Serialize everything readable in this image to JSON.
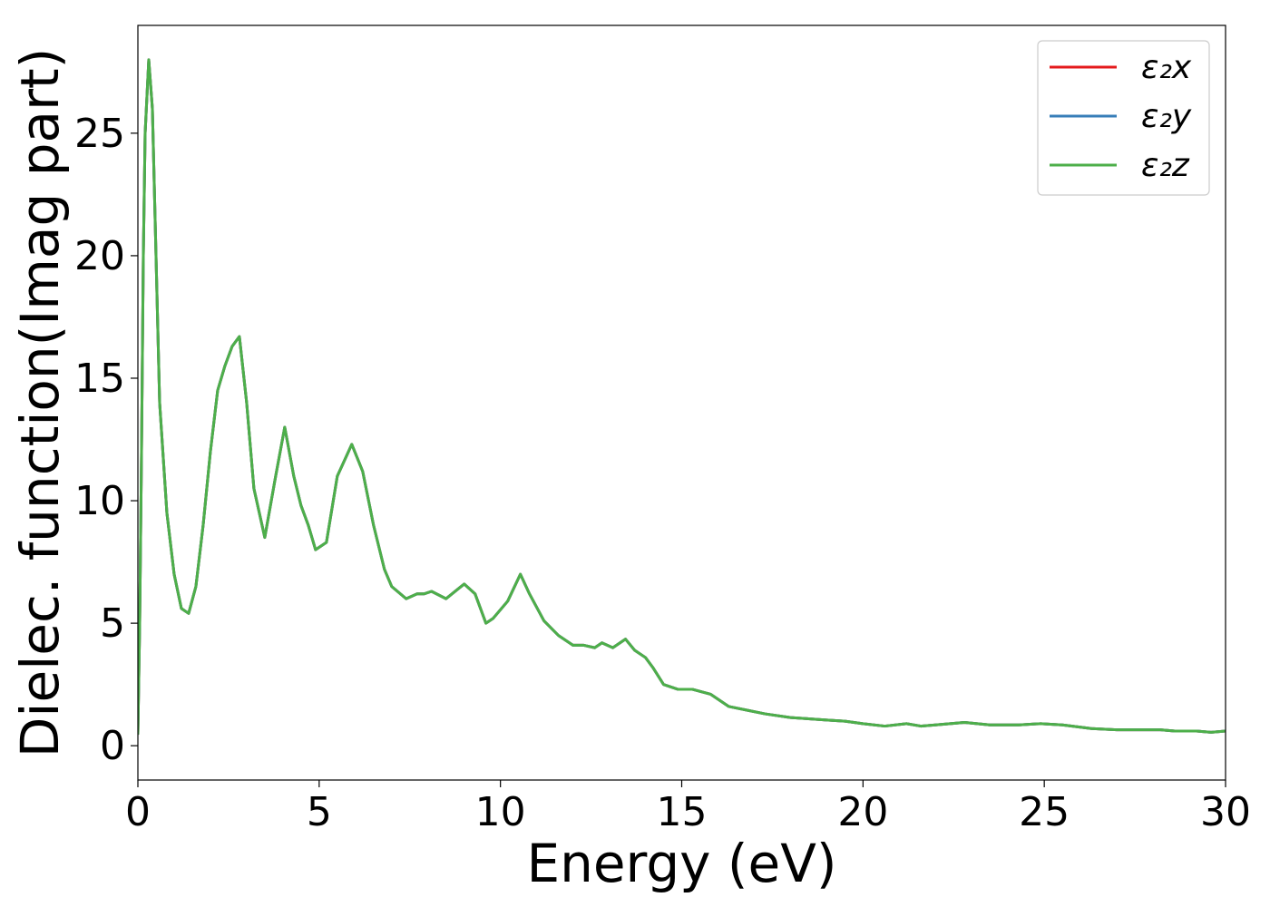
{
  "chart_data": {
    "type": "line",
    "title": "",
    "xlabel": "Energy (eV)",
    "ylabel": "Dielec. function(Imag part)",
    "xlim": [
      0,
      30
    ],
    "ylim": [
      -1.4,
      29.4
    ],
    "xticks": [
      0,
      5,
      10,
      15,
      20,
      25,
      30
    ],
    "yticks": [
      0,
      5,
      10,
      15,
      20,
      25
    ],
    "grid": false,
    "legend_position": "top-right",
    "x": [
      0,
      0.05,
      0.1,
      0.15,
      0.2,
      0.3,
      0.4,
      0.5,
      0.6,
      0.8,
      1.0,
      1.2,
      1.4,
      1.6,
      1.8,
      2.0,
      2.2,
      2.4,
      2.6,
      2.8,
      3.0,
      3.2,
      3.5,
      3.8,
      4.05,
      4.3,
      4.5,
      4.7,
      4.9,
      5.2,
      5.5,
      5.9,
      6.2,
      6.5,
      6.8,
      7.0,
      7.4,
      7.7,
      7.9,
      8.1,
      8.5,
      9.0,
      9.3,
      9.6,
      9.8,
      10.2,
      10.55,
      10.8,
      11.2,
      11.6,
      12.0,
      12.3,
      12.6,
      12.8,
      13.1,
      13.45,
      13.7,
      14.0,
      14.2,
      14.5,
      14.9,
      15.3,
      15.8,
      16.3,
      16.8,
      17.3,
      18.0,
      18.5,
      19.0,
      19.5,
      20.0,
      20.6,
      21.2,
      21.6,
      22.0,
      22.8,
      23.5,
      24.3,
      24.9,
      25.5,
      26.3,
      27.0,
      27.5,
      28.2,
      28.6,
      29.2,
      29.6,
      30.0
    ],
    "series": [
      {
        "name": "ε₂x",
        "color": "#e41a1c",
        "values": [
          0.5,
          5,
          12,
          20,
          25,
          28,
          26,
          20,
          14,
          9.5,
          7,
          5.6,
          5.4,
          6.5,
          9,
          12,
          14.5,
          15.5,
          16.3,
          16.7,
          14,
          10.5,
          8.5,
          11,
          13,
          11,
          9.8,
          9,
          8,
          8.3,
          11,
          12.3,
          11.2,
          9,
          7.2,
          6.5,
          6,
          6.2,
          6.2,
          6.3,
          6,
          6.6,
          6.2,
          5,
          5.2,
          5.9,
          7,
          6.2,
          5.1,
          4.5,
          4.1,
          4.1,
          4,
          4.2,
          4,
          4.35,
          3.9,
          3.6,
          3.2,
          2.5,
          2.3,
          2.3,
          2.1,
          1.6,
          1.45,
          1.3,
          1.15,
          1.1,
          1.05,
          1.0,
          0.9,
          0.8,
          0.9,
          0.8,
          0.85,
          0.95,
          0.85,
          0.85,
          0.9,
          0.85,
          0.7,
          0.65,
          0.65,
          0.65,
          0.6,
          0.6,
          0.55,
          0.6
        ]
      },
      {
        "name": "ε₂y",
        "color": "#377eb8",
        "values": [
          0.5,
          5,
          12,
          20,
          25,
          28,
          26,
          20,
          14,
          9.5,
          7,
          5.6,
          5.4,
          6.5,
          9,
          12,
          14.5,
          15.5,
          16.3,
          16.7,
          14,
          10.5,
          8.5,
          11,
          13,
          11,
          9.8,
          9,
          8,
          8.3,
          11,
          12.3,
          11.2,
          9,
          7.2,
          6.5,
          6,
          6.2,
          6.2,
          6.3,
          6,
          6.6,
          6.2,
          5,
          5.2,
          5.9,
          7,
          6.2,
          5.1,
          4.5,
          4.1,
          4.1,
          4,
          4.2,
          4,
          4.35,
          3.9,
          3.6,
          3.2,
          2.5,
          2.3,
          2.3,
          2.1,
          1.6,
          1.45,
          1.3,
          1.15,
          1.1,
          1.05,
          1.0,
          0.9,
          0.8,
          0.9,
          0.8,
          0.85,
          0.95,
          0.85,
          0.85,
          0.9,
          0.85,
          0.7,
          0.65,
          0.65,
          0.65,
          0.6,
          0.6,
          0.55,
          0.6
        ]
      },
      {
        "name": "ε₂z",
        "color": "#4daf4a",
        "values": [
          0.5,
          5,
          12,
          20,
          25,
          28,
          26,
          20,
          14,
          9.5,
          7,
          5.6,
          5.4,
          6.5,
          9,
          12,
          14.5,
          15.5,
          16.3,
          16.7,
          14,
          10.5,
          8.5,
          11,
          13,
          11,
          9.8,
          9,
          8,
          8.3,
          11,
          12.3,
          11.2,
          9,
          7.2,
          6.5,
          6,
          6.2,
          6.2,
          6.3,
          6,
          6.6,
          6.2,
          5,
          5.2,
          5.9,
          7,
          6.2,
          5.1,
          4.5,
          4.1,
          4.1,
          4,
          4.2,
          4,
          4.35,
          3.9,
          3.6,
          3.2,
          2.5,
          2.3,
          2.3,
          2.1,
          1.6,
          1.45,
          1.3,
          1.15,
          1.1,
          1.05,
          1.0,
          0.9,
          0.8,
          0.9,
          0.8,
          0.85,
          0.95,
          0.85,
          0.85,
          0.9,
          0.85,
          0.7,
          0.65,
          0.65,
          0.65,
          0.6,
          0.6,
          0.55,
          0.6
        ]
      }
    ]
  }
}
